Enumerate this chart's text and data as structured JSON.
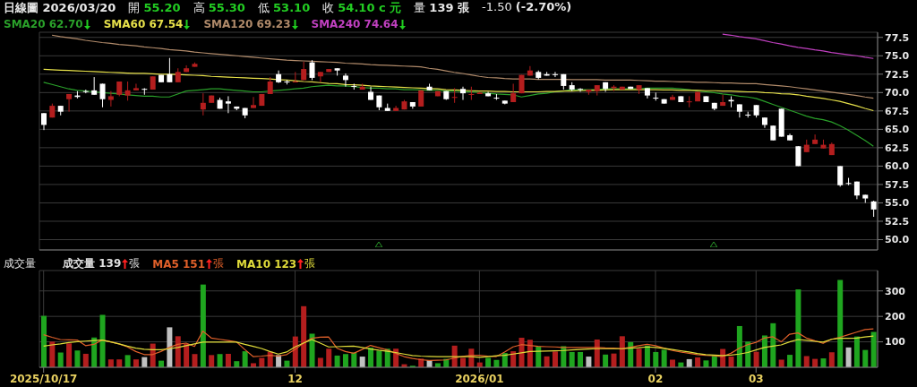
{
  "chart_data": [
    {
      "type": "candlestick",
      "title": "日線圖 2026/03/20",
      "annotations": [
        "開 55.20",
        "高 55.30",
        "低 53.10",
        "收 54.10 c 元",
        "量 139 張",
        "-1.50 (-2.70%)"
      ],
      "categories": [
        "2025/10/17",
        null,
        null,
        null,
        null,
        null,
        null,
        null,
        null,
        null,
        null,
        null,
        null,
        null,
        null,
        null,
        null,
        null,
        null,
        null,
        null,
        null,
        null,
        null,
        null,
        null,
        null,
        null,
        null,
        null,
        "12",
        null,
        null,
        null,
        null,
        null,
        null,
        null,
        null,
        null,
        null,
        null,
        null,
        null,
        null,
        null,
        null,
        null,
        null,
        null,
        null,
        null,
        "2026/01",
        null,
        null,
        null,
        null,
        null,
        null,
        null,
        null,
        null,
        null,
        null,
        null,
        null,
        null,
        null,
        null,
        null,
        null,
        null,
        null,
        "02",
        null,
        null,
        null,
        null,
        null,
        null,
        null,
        null,
        null,
        null,
        null,
        "03",
        null,
        null,
        null,
        null,
        null,
        null,
        null,
        null,
        null,
        null,
        null,
        null,
        null,
        null
      ],
      "ohlc": [
        [
          67.2,
          67.2,
          64.9,
          65.6
        ],
        [
          66.6,
          68.5,
          66.6,
          68.2
        ],
        [
          68.2,
          68.2,
          66.9,
          67.4
        ],
        [
          69.1,
          69.8,
          67.4,
          69.8
        ],
        [
          69.6,
          70.2,
          69.2,
          69.4
        ],
        [
          70.2,
          70.4,
          69.9,
          70.1
        ],
        [
          70.3,
          72.1,
          69.7,
          69.7
        ],
        [
          71.2,
          71.2,
          68.0,
          69.1
        ],
        [
          69.0,
          70.2,
          68.1,
          69.5
        ],
        [
          69.7,
          71.5,
          69.5,
          71.5
        ],
        [
          69.6,
          71.5,
          68.9,
          70.3
        ],
        [
          70.3,
          71.2,
          70.3,
          70.6
        ],
        [
          70.5,
          70.6,
          69.7,
          70.4
        ],
        [
          70.4,
          72.2,
          70.4,
          72.2
        ],
        [
          72.4,
          72.4,
          71.4,
          71.4
        ],
        [
          72.5,
          74.7,
          71.4,
          71.4
        ],
        [
          71.4,
          73.3,
          71.4,
          72.8
        ],
        [
          72.8,
          73.7,
          72.8,
          73.3
        ],
        [
          73.5,
          74.1,
          73.5,
          73.9
        ],
        [
          67.7,
          69.9,
          66.9,
          68.6
        ],
        [
          68.6,
          69.6,
          68.6,
          69.6
        ],
        [
          69.0,
          69.3,
          67.8,
          67.8
        ],
        [
          68.8,
          69.5,
          67.2,
          68.5
        ],
        [
          68.1,
          68.1,
          67.6,
          67.8
        ],
        [
          67.9,
          67.9,
          66.5,
          66.9
        ],
        [
          67.9,
          69.4,
          67.9,
          68.3
        ],
        [
          68.2,
          69.8,
          68.2,
          69.8
        ],
        [
          69.8,
          72.1,
          69.8,
          71.5
        ],
        [
          72.5,
          73.0,
          71.3,
          71.4
        ],
        [
          71.5,
          71.7,
          71.1,
          71.4
        ],
        [
          71.4,
          72.8,
          71.4,
          71.5
        ],
        [
          71.7,
          74.2,
          71.7,
          73.2
        ],
        [
          74.1,
          74.4,
          71.7,
          72.0
        ],
        [
          72.2,
          72.8,
          71.4,
          72.8
        ],
        [
          72.8,
          73.2,
          72.8,
          73.2
        ],
        [
          73.3,
          73.3,
          72.3,
          73.0
        ],
        [
          72.3,
          72.6,
          70.8,
          71.7
        ],
        [
          70.9,
          71.2,
          70.4,
          70.8
        ],
        [
          70.4,
          71.2,
          70.4,
          70.8
        ],
        [
          70.1,
          70.8,
          69.0,
          69.0
        ],
        [
          69.6,
          69.6,
          67.6,
          68.0
        ],
        [
          67.9,
          68.5,
          67.5,
          67.5
        ],
        [
          67.5,
          68.2,
          67.5,
          67.9
        ],
        [
          67.7,
          69.0,
          67.7,
          68.8
        ],
        [
          68.7,
          68.7,
          67.8,
          68.1
        ],
        [
          68.1,
          70.4,
          68.1,
          70.3
        ],
        [
          70.8,
          71.2,
          70.3,
          70.3
        ],
        [
          69.5,
          70.2,
          69.5,
          70.2
        ],
        [
          70.2,
          70.2,
          69.0,
          69.1
        ],
        [
          69.3,
          70.6,
          68.6,
          69.4
        ],
        [
          70.5,
          70.8,
          69.0,
          69.9
        ],
        [
          69.7,
          70.8,
          69.0,
          69.8
        ],
        [
          69.8,
          70.1,
          69.8,
          70.0
        ],
        [
          69.9,
          70.1,
          69.5,
          69.5
        ],
        [
          69.3,
          69.8,
          69.0,
          69.2
        ],
        [
          68.9,
          68.9,
          68.4,
          68.5
        ],
        [
          68.7,
          71.2,
          68.7,
          69.9
        ],
        [
          69.9,
          72.4,
          69.9,
          72.4
        ],
        [
          72.3,
          73.6,
          72.3,
          73.0
        ],
        [
          72.8,
          73.0,
          71.8,
          72.0
        ],
        [
          72.5,
          72.8,
          72.3,
          72.3
        ],
        [
          72.5,
          72.8,
          72.1,
          72.4
        ],
        [
          72.5,
          72.5,
          70.4,
          70.9
        ],
        [
          71.0,
          71.4,
          70.2,
          70.4
        ],
        [
          70.5,
          70.6,
          70.1,
          70.4
        ],
        [
          70.1,
          70.4,
          69.7,
          70.4
        ],
        [
          70.2,
          71.0,
          69.6,
          71.0
        ],
        [
          71.4,
          71.4,
          70.1,
          70.5
        ],
        [
          70.6,
          71.0,
          70.2,
          70.8
        ],
        [
          70.4,
          70.8,
          70.4,
          70.8
        ],
        [
          70.8,
          70.8,
          70.5,
          70.5
        ],
        [
          70.4,
          71.0,
          69.8,
          71.0
        ],
        [
          70.6,
          70.6,
          69.2,
          69.6
        ],
        [
          69.3,
          70.0,
          68.9,
          69.2
        ],
        [
          69.1,
          69.1,
          68.5,
          68.5
        ],
        [
          69.0,
          69.7,
          69.0,
          69.4
        ],
        [
          69.5,
          69.5,
          68.7,
          68.7
        ],
        [
          68.7,
          69.5,
          68.0,
          68.8
        ],
        [
          68.8,
          70.1,
          68.8,
          70.1
        ],
        [
          69.5,
          69.5,
          68.7,
          68.7
        ],
        [
          68.6,
          68.6,
          67.6,
          67.8
        ],
        [
          68.2,
          69.7,
          68.2,
          68.7
        ],
        [
          69.0,
          69.5,
          68.0,
          68.8
        ],
        [
          68.4,
          68.4,
          66.6,
          67.4
        ],
        [
          67.0,
          67.4,
          66.6,
          66.9
        ],
        [
          68.3,
          68.3,
          66.6,
          66.9
        ],
        [
          66.6,
          66.6,
          65.2,
          65.6
        ],
        [
          65.5,
          65.5,
          63.5,
          63.5
        ],
        [
          67.8,
          67.8,
          64.0,
          64.0
        ],
        [
          64.2,
          64.4,
          63.5,
          63.5
        ],
        [
          62.7,
          62.7,
          60.0,
          60.0
        ],
        [
          61.9,
          63.6,
          61.9,
          62.9
        ],
        [
          63.0,
          64.3,
          63.0,
          63.6
        ],
        [
          62.4,
          63.6,
          62.4,
          62.9
        ],
        [
          61.5,
          63.2,
          61.5,
          63.0
        ],
        [
          60.0,
          60.0,
          57.2,
          57.4
        ],
        [
          57.7,
          58.4,
          57.4,
          57.6
        ],
        [
          57.9,
          57.9,
          55.5,
          56.0
        ],
        [
          56.1,
          56.1,
          55.0,
          55.6
        ],
        [
          55.2,
          55.3,
          53.1,
          54.1
        ]
      ],
      "colors": [
        "#ffffff",
        "#b41e1e",
        "#ffffff",
        "#b41e1e",
        "#ffffff",
        "#ffffff",
        "#ffffff",
        "#ffffff",
        "#b41e1e",
        "#b41e1e",
        "#b41e1e",
        "#b41e1e",
        "#ffffff",
        "#b41e1e",
        "#ffffff",
        "#ffffff",
        "#b41e1e",
        "#b41e1e",
        "#b41e1e",
        "#b41e1e",
        "#b41e1e",
        "#ffffff",
        "#ffffff",
        "#ffffff",
        "#ffffff",
        "#b41e1e",
        "#b41e1e",
        "#b41e1e",
        "#ffffff",
        "#ffffff",
        "#b41e1e",
        "#b41e1e",
        "#ffffff",
        "#b41e1e",
        "#b41e1e",
        "#ffffff",
        "#ffffff",
        "#ffffff",
        "#b41e1e",
        "#ffffff",
        "#ffffff",
        "#ffffff",
        "#b41e1e",
        "#b41e1e",
        "#ffffff",
        "#b41e1e",
        "#ffffff",
        "#b41e1e",
        "#ffffff",
        "#b41e1e",
        "#ffffff",
        "#b41e1e",
        "#b41e1e",
        "#ffffff",
        "#ffffff",
        "#ffffff",
        "#b41e1e",
        "#b41e1e",
        "#b41e1e",
        "#ffffff",
        "#ffffff",
        "#ffffff",
        "#ffffff",
        "#ffffff",
        "#ffffff",
        "#b41e1e",
        "#b41e1e",
        "#ffffff",
        "#b41e1e",
        "#b41e1e",
        "#ffffff",
        "#b41e1e",
        "#ffffff",
        "#ffffff",
        "#ffffff",
        "#b41e1e",
        "#ffffff",
        "#b41e1e",
        "#b41e1e",
        "#ffffff",
        "#ffffff",
        "#b41e1e",
        "#ffffff",
        "#ffffff",
        "#ffffff",
        "#ffffff",
        "#ffffff",
        "#ffffff",
        "#ffffff",
        "#ffffff",
        "#ffffff",
        "#b41e1e",
        "#b41e1e",
        "#b41e1e",
        "#b41e1e",
        "#ffffff",
        "#ffffff",
        "#ffffff",
        "#ffffff",
        "#ffffff"
      ],
      "series": [
        {
          "name": "SMA20 62.70",
          "type": "line",
          "color": "#2aa02a",
          "values": [
            71.4,
            71.1,
            70.8,
            70.5,
            70.3,
            70.2,
            70.1,
            70.0,
            69.9,
            69.8,
            69.7,
            69.6,
            69.5,
            69.5,
            69.4,
            69.4,
            69.8,
            70.2,
            70.3,
            70.4,
            70.5,
            70.5,
            70.4,
            70.3,
            70.2,
            70.1,
            70.1,
            70.2,
            70.3,
            70.4,
            70.5,
            70.6,
            70.8,
            70.9,
            71.0,
            70.9,
            70.9,
            70.8,
            70.7,
            70.6,
            70.6,
            70.5,
            70.5,
            70.4,
            70.4,
            70.35,
            70.3,
            70.3,
            70.2,
            70.2,
            70.1,
            70.1,
            70.0,
            69.9,
            69.8,
            69.75,
            69.7,
            69.4,
            69.6,
            69.8,
            69.9,
            70.1,
            70.2,
            70.4,
            70.4,
            70.4,
            70.4,
            70.5,
            70.5,
            70.5,
            70.5,
            70.5,
            70.6,
            70.6,
            70.6,
            70.6,
            70.5,
            70.4,
            70.2,
            70.1,
            70.0,
            69.8,
            69.7,
            69.5,
            69.4,
            69.2,
            68.8,
            68.4,
            68.0,
            67.6,
            67.2,
            66.8,
            66.5,
            66.3,
            66.0,
            65.5,
            64.9,
            64.2,
            63.5,
            62.7
          ]
        },
        {
          "name": "SMA60 67.54",
          "type": "line",
          "color": "#e6e04a",
          "values": [
            73.15,
            73.1,
            73.05,
            73.0,
            72.95,
            72.9,
            72.85,
            72.8,
            72.75,
            72.7,
            72.65,
            72.6,
            72.6,
            72.55,
            72.5,
            72.5,
            72.45,
            72.4,
            72.35,
            72.3,
            72.2,
            72.15,
            72.1,
            72.05,
            72.0,
            71.95,
            71.9,
            71.85,
            71.75,
            71.7,
            71.6,
            71.5,
            71.45,
            71.35,
            71.25,
            71.2,
            71.1,
            71.05,
            71.0,
            70.9,
            70.85,
            70.8,
            70.75,
            70.7,
            70.65,
            70.6,
            70.55,
            70.5,
            70.4,
            70.35,
            70.3,
            70.25,
            70.2,
            70.2,
            70.15,
            70.15,
            70.1,
            70.1,
            70.1,
            70.1,
            70.15,
            70.15,
            70.2,
            70.2,
            70.25,
            70.3,
            70.3,
            70.35,
            70.4,
            70.4,
            70.4,
            70.4,
            70.4,
            70.4,
            70.35,
            70.35,
            70.3,
            70.3,
            70.3,
            70.25,
            70.25,
            70.2,
            70.2,
            70.15,
            70.1,
            70.1,
            70.0,
            69.95,
            69.85,
            69.8,
            69.7,
            69.5,
            69.35,
            69.2,
            69.0,
            68.8,
            68.5,
            68.2,
            67.85,
            67.54
          ]
        },
        {
          "name": "SMA120 69.23",
          "type": "line",
          "color": "#b08a6a",
          "values": [
            null,
            77.8,
            77.6,
            77.45,
            77.3,
            77.1,
            76.95,
            76.8,
            76.7,
            76.55,
            76.45,
            76.35,
            76.2,
            76.1,
            76.0,
            75.85,
            75.75,
            75.65,
            75.5,
            75.4,
            75.3,
            75.2,
            75.1,
            75.0,
            74.9,
            74.8,
            74.7,
            74.6,
            74.5,
            74.4,
            74.35,
            74.3,
            74.25,
            74.2,
            74.15,
            74.1,
            74.0,
            73.95,
            73.9,
            73.8,
            73.75,
            73.7,
            73.65,
            73.6,
            73.55,
            73.5,
            73.3,
            73.15,
            72.95,
            72.75,
            72.6,
            72.4,
            72.2,
            72.05,
            72.0,
            71.9,
            71.85,
            71.85,
            71.85,
            71.8,
            71.8,
            71.8,
            71.8,
            71.75,
            71.75,
            71.75,
            71.75,
            71.7,
            71.7,
            71.7,
            71.7,
            71.65,
            71.6,
            71.55,
            71.55,
            71.5,
            71.45,
            71.45,
            71.4,
            71.4,
            71.35,
            71.3,
            71.3,
            71.25,
            71.2,
            71.2,
            71.1,
            71.0,
            70.9,
            70.8,
            70.65,
            70.5,
            70.35,
            70.2,
            70.05,
            69.9,
            69.75,
            69.6,
            69.4,
            69.23
          ]
        },
        {
          "name": "SMA240 74.64",
          "type": "line",
          "color": "#c040c0",
          "values": [
            null,
            null,
            null,
            null,
            null,
            null,
            null,
            null,
            null,
            null,
            null,
            null,
            null,
            null,
            null,
            null,
            null,
            null,
            null,
            null,
            null,
            null,
            null,
            null,
            null,
            null,
            null,
            null,
            null,
            null,
            null,
            null,
            null,
            null,
            null,
            null,
            null,
            null,
            null,
            null,
            null,
            null,
            null,
            null,
            null,
            null,
            null,
            null,
            null,
            null,
            null,
            null,
            null,
            null,
            null,
            null,
            null,
            null,
            null,
            null,
            null,
            null,
            null,
            null,
            null,
            null,
            null,
            null,
            null,
            null,
            null,
            null,
            null,
            null,
            null,
            null,
            null,
            null,
            null,
            null,
            null,
            77.95,
            77.8,
            77.6,
            77.45,
            77.3,
            77.05,
            76.8,
            76.6,
            76.35,
            76.15,
            76.0,
            75.8,
            75.65,
            75.45,
            75.3,
            75.15,
            75.0,
            74.8,
            74.64
          ]
        }
      ],
      "ylim": [
        48.6,
        78.2
      ],
      "yticks": [
        {
          "value": 50,
          "label": "50.0"
        },
        52.5,
        {
          "value": 55,
          "label": "55.0"
        },
        57.5,
        {
          "value": 60,
          "label": "60.0"
        },
        62.5,
        {
          "value": 65,
          "label": "65.0"
        },
        67.5,
        {
          "value": 70,
          "label": "70.0"
        },
        72.5,
        {
          "value": 75,
          "label": "75.0"
        },
        77.5
      ],
      "grid": true,
      "legend": "top left",
      "tick_labels": "y"
    },
    {
      "type": "bar",
      "title": "成交量",
      "categories": [
        "2025/10/17",
        null,
        null,
        null,
        null,
        null,
        null,
        null,
        null,
        null,
        null,
        null,
        null,
        null,
        null,
        null,
        null,
        null,
        null,
        null,
        null,
        null,
        null,
        null,
        null,
        null,
        null,
        null,
        null,
        null,
        "12",
        null,
        null,
        null,
        null,
        null,
        null,
        null,
        null,
        null,
        null,
        null,
        null,
        null,
        null,
        null,
        null,
        null,
        null,
        null,
        null,
        null,
        "2026/01",
        null,
        null,
        null,
        null,
        null,
        null,
        null,
        null,
        null,
        null,
        null,
        null,
        null,
        null,
        null,
        null,
        null,
        null,
        null,
        null,
        "02",
        null,
        null,
        null,
        null,
        null,
        null,
        null,
        null,
        null,
        null,
        null,
        "03",
        null,
        null,
        null,
        null,
        null,
        null,
        null,
        null,
        null,
        null,
        null,
        null,
        null,
        null
      ],
      "series": [
        {
          "name": "成交量 139 張",
          "type": "bar",
          "values": [
            202,
            101,
            58,
            94,
            66,
            53,
            117,
            206,
            31,
            31,
            48,
            31,
            40,
            93,
            26,
            157,
            122,
            92,
            52,
            325,
            48,
            52,
            53,
            24,
            63,
            16,
            37,
            61,
            48,
            26,
            121,
            240,
            132,
            37,
            73,
            46,
            52,
            58,
            42,
            77,
            65,
            73,
            73,
            12,
            6,
            34,
            28,
            16,
            33,
            85,
            37,
            73,
            19,
            37,
            29,
            56,
            63,
            116,
            108,
            82,
            43,
            62,
            83,
            60,
            60,
            42,
            109,
            50,
            54,
            122,
            99,
            73,
            85,
            60,
            69,
            30,
            19,
            32,
            39,
            27,
            48,
            72,
            42,
            162,
            101,
            61,
            125,
            173,
            30,
            49,
            306,
            44,
            33,
            35,
            59,
            343,
            78,
            121,
            68,
            139
          ],
          "colors": [
            "#1fa51f",
            "#b41e1e",
            "#1fa51f",
            "#b41e1e",
            "#1fa51f",
            "#b41e1e",
            "#1fa51f",
            "#1fa51f",
            "#b41e1e",
            "#b41e1e",
            "#1fa51f",
            "#b41e1e",
            "#c0c0c0",
            "#b41e1e",
            "#1fa51f",
            "#c0c0c0",
            "#b41e1e",
            "#b41e1e",
            "#b41e1e",
            "#1fa51f",
            "#b41e1e",
            "#1fa51f",
            "#b41e1e",
            "#1fa51f",
            "#1fa51f",
            "#b41e1e",
            "#b41e1e",
            "#b41e1e",
            "#c0c0c0",
            "#1fa51f",
            "#b41e1e",
            "#b41e1e",
            "#1fa51f",
            "#b41e1e",
            "#b41e1e",
            "#1fa51f",
            "#1fa51f",
            "#1fa51f",
            "#c0c0c0",
            "#1fa51f",
            "#1fa51f",
            "#1fa51f",
            "#b41e1e",
            "#b41e1e",
            "#1fa51f",
            "#b41e1e",
            "#c0c0c0",
            "#1fa51f",
            "#1fa51f",
            "#b41e1e",
            "#b41e1e",
            "#b41e1e",
            "#b41e1e",
            "#1fa51f",
            "#1fa51f",
            "#1fa51f",
            "#b41e1e",
            "#b41e1e",
            "#b41e1e",
            "#1fa51f",
            "#b41e1e",
            "#b41e1e",
            "#1fa51f",
            "#1fa51f",
            "#1fa51f",
            "#c0c0c0",
            "#b41e1e",
            "#1fa51f",
            "#b41e1e",
            "#b41e1e",
            "#1fa51f",
            "#b41e1e",
            "#1fa51f",
            "#1fa51f",
            "#1fa51f",
            "#b41e1e",
            "#1fa51f",
            "#c0c0c0",
            "#b41e1e",
            "#1fa51f",
            "#1fa51f",
            "#b41e1e",
            "#b41e1e",
            "#1fa51f",
            "#1fa51f",
            "#b41e1e",
            "#1fa51f",
            "#1fa51f",
            "#b41e1e",
            "#1fa51f",
            "#1fa51f",
            "#b41e1e",
            "#b41e1e",
            "#1fa51f",
            "#b41e1e",
            "#1fa51f",
            "#c0c0c0",
            "#1fa51f",
            "#1fa51f",
            "#1fa51f"
          ]
        },
        {
          "name": "MA5 151 張",
          "type": "line",
          "color": "#e0602a",
          "values": [
            128,
            118,
            109,
            108,
            107,
            85,
            90,
            107,
            100,
            92,
            80,
            62,
            50,
            50,
            62,
            78,
            90,
            95,
            82,
            142,
            115,
            110,
            105,
            100,
            70,
            42,
            44,
            47,
            44,
            50,
            70,
            95,
            114,
            118,
            119,
            75,
            62,
            55,
            70,
            86,
            77,
            68,
            55,
            42,
            35,
            30,
            27,
            28,
            29,
            36,
            43,
            47,
            47,
            44,
            42,
            60,
            80,
            89,
            86,
            82,
            81,
            80,
            78,
            78,
            78,
            78,
            78,
            76,
            75,
            73,
            79,
            85,
            90,
            85,
            75,
            66,
            60,
            55,
            50,
            47,
            45,
            42,
            55,
            75,
            89,
            98,
            115,
            120,
            100,
            130,
            135,
            115,
            104,
            94,
            110,
            118,
            128,
            138,
            148,
            151
          ]
        },
        {
          "name": "MA10 123 張",
          "type": "line",
          "color": "#e0dc3a",
          "values": [
            83,
            88,
            92,
            97,
            101,
            103,
            105,
            107,
            100,
            92,
            83,
            75,
            71,
            69,
            69,
            73,
            78,
            85,
            92,
            99,
            99,
            99,
            99,
            99,
            90,
            82,
            74,
            62,
            52,
            60,
            80,
            95,
            109,
            95,
            80,
            81,
            82,
            83,
            78,
            72,
            67,
            63,
            58,
            52,
            46,
            44,
            43,
            42,
            42,
            42,
            42,
            42,
            39,
            42,
            45,
            47,
            52,
            57,
            62,
            63,
            64,
            65,
            66,
            68,
            70,
            72,
            73,
            73,
            73,
            73,
            75,
            77,
            80,
            78,
            74,
            70,
            65,
            60,
            54,
            50,
            48,
            46,
            48,
            52,
            58,
            68,
            78,
            83,
            88,
            100,
            109,
            106,
            102,
            99,
            110,
            114,
            114,
            115,
            119,
            123
          ]
        }
      ],
      "ylim": [
        0,
        380
      ],
      "yticks": [
        100,
        200,
        300
      ],
      "grid": true,
      "legend": "top left"
    }
  ]
}
